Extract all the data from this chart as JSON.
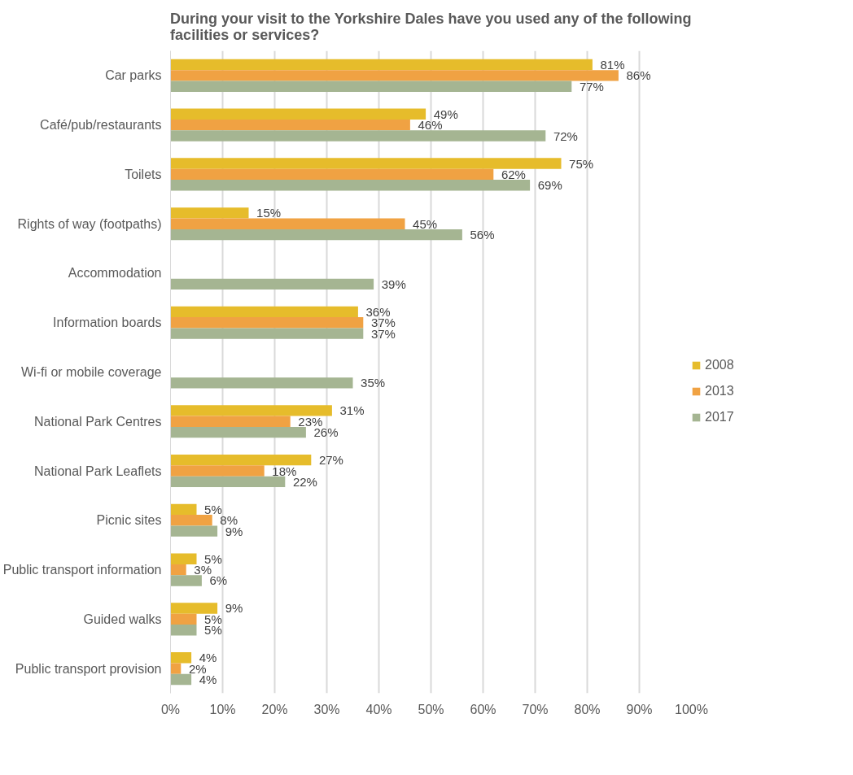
{
  "chart_data": {
    "type": "bar",
    "orientation": "horizontal",
    "title": "During your visit to the Yorkshire Dales have you used any of the following facilities or services?",
    "categories": [
      "Car parks",
      "Café/pub/restaurants",
      "Toilets",
      "Rights of way (footpaths)",
      "Accommodation",
      "Information boards",
      "Wi-fi or mobile coverage",
      "National Park Centres",
      "National Park Leaflets",
      "Picnic sites",
      "Public transport information",
      "Guided walks",
      "Public transport provision"
    ],
    "series": [
      {
        "name": "2008",
        "color": "#e6bc2b",
        "values": [
          81,
          49,
          75,
          15,
          null,
          36,
          null,
          31,
          27,
          5,
          5,
          9,
          4
        ],
        "value_labels": [
          "81%",
          "49%",
          "75%",
          "15%",
          null,
          "36%",
          null,
          "31%",
          "27%",
          "5%",
          "5%",
          "9%",
          "4%"
        ]
      },
      {
        "name": "2013",
        "color": "#f0a243",
        "values": [
          86,
          46,
          62,
          45,
          null,
          37,
          null,
          23,
          18,
          8,
          3,
          5,
          2
        ],
        "value_labels": [
          "86%",
          "46%",
          "62%",
          "45%",
          null,
          "37%",
          null,
          "23%",
          "18%",
          "8%",
          "3%",
          "5%",
          "2%"
        ]
      },
      {
        "name": "2017",
        "color": "#a5b592",
        "values": [
          77,
          72,
          69,
          56,
          39,
          37,
          35,
          26,
          22,
          9,
          6,
          5,
          4
        ],
        "value_labels": [
          "77%",
          "72%",
          "69%",
          "56%",
          "39%",
          "37%",
          "35%",
          "26%",
          "22%",
          "9%",
          "6%",
          "5%",
          "4%"
        ]
      }
    ],
    "xlim": [
      0,
      100
    ],
    "xticks": [
      {
        "value": 0,
        "label": "0%"
      },
      {
        "value": 10,
        "label": "10%"
      },
      {
        "value": 20,
        "label": "20%"
      },
      {
        "value": 30,
        "label": "30%"
      },
      {
        "value": 40,
        "label": "40%"
      },
      {
        "value": 50,
        "label": "50%"
      },
      {
        "value": 60,
        "label": "60%"
      },
      {
        "value": 70,
        "label": "70%"
      },
      {
        "value": 80,
        "label": "80%"
      },
      {
        "value": 90,
        "label": "90%"
      },
      {
        "value": 100,
        "label": "100%"
      }
    ],
    "grid": "x",
    "legend": "right"
  }
}
